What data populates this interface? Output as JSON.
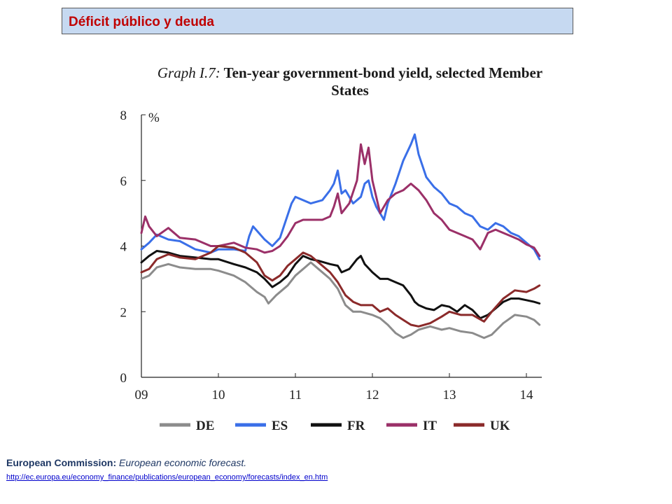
{
  "slide": {
    "header_title": "Déficit público y deuda",
    "source_label": "European Commission:",
    "source_title": "European economic forecast.",
    "source_url": "http://ec.europa.eu/economy_finance/publications/european_economy/forecasts/index_en.htm"
  },
  "chart_data": {
    "type": "line",
    "title_prefix": "Graph I.7:",
    "title": "Ten-year government-bond yield, selected Member States",
    "ylabel": "%",
    "ylim": [
      0,
      8
    ],
    "yticks": [
      0,
      2,
      4,
      6,
      8
    ],
    "xlim": [
      2009.0,
      2014.2
    ],
    "xticks": [
      2009,
      2010,
      2011,
      2012,
      2013,
      2014
    ],
    "xtick_labels": [
      "09",
      "10",
      "11",
      "12",
      "13",
      "14"
    ],
    "legend_position": "bottom",
    "series": [
      {
        "name": "DE",
        "color": "#8c8c8c",
        "x": [
          2009.0,
          2009.1,
          2009.2,
          2009.35,
          2009.5,
          2009.7,
          2009.9,
          2010.0,
          2010.2,
          2010.35,
          2010.5,
          2010.6,
          2010.65,
          2010.75,
          2010.9,
          2011.0,
          2011.1,
          2011.2,
          2011.3,
          2011.45,
          2011.55,
          2011.65,
          2011.75,
          2011.85,
          2012.0,
          2012.1,
          2012.2,
          2012.3,
          2012.4,
          2012.5,
          2012.6,
          2012.75,
          2012.9,
          2013.0,
          2013.15,
          2013.3,
          2013.45,
          2013.55,
          2013.7,
          2013.85,
          2014.0,
          2014.1,
          2014.17
        ],
        "y": [
          3.0,
          3.1,
          3.35,
          3.45,
          3.35,
          3.3,
          3.3,
          3.25,
          3.1,
          2.9,
          2.6,
          2.45,
          2.25,
          2.5,
          2.8,
          3.1,
          3.3,
          3.5,
          3.3,
          3.0,
          2.7,
          2.2,
          2.0,
          2.0,
          1.9,
          1.8,
          1.6,
          1.35,
          1.2,
          1.3,
          1.45,
          1.55,
          1.45,
          1.5,
          1.4,
          1.35,
          1.2,
          1.3,
          1.65,
          1.9,
          1.85,
          1.75,
          1.6
        ]
      },
      {
        "name": "ES",
        "color": "#3a6fe8",
        "x": [
          2009.0,
          2009.1,
          2009.2,
          2009.35,
          2009.5,
          2009.7,
          2009.9,
          2010.0,
          2010.2,
          2010.35,
          2010.4,
          2010.45,
          2010.6,
          2010.7,
          2010.8,
          2010.85,
          2010.95,
          2011.0,
          2011.2,
          2011.35,
          2011.45,
          2011.5,
          2011.55,
          2011.6,
          2011.65,
          2011.75,
          2011.85,
          2011.9,
          2011.95,
          2012.0,
          2012.05,
          2012.1,
          2012.15,
          2012.2,
          2012.3,
          2012.4,
          2012.5,
          2012.55,
          2012.6,
          2012.7,
          2012.8,
          2012.9,
          2013.0,
          2013.1,
          2013.2,
          2013.3,
          2013.4,
          2013.5,
          2013.6,
          2013.7,
          2013.8,
          2013.9,
          2014.0,
          2014.1,
          2014.17
        ],
        "y": [
          3.9,
          4.1,
          4.35,
          4.2,
          4.15,
          3.9,
          3.8,
          3.9,
          3.9,
          3.85,
          4.3,
          4.6,
          4.2,
          4.0,
          4.25,
          4.6,
          5.3,
          5.5,
          5.3,
          5.4,
          5.7,
          5.9,
          6.3,
          5.6,
          5.7,
          5.3,
          5.5,
          5.9,
          6.0,
          5.5,
          5.2,
          5.0,
          4.8,
          5.3,
          5.9,
          6.6,
          7.1,
          7.4,
          6.8,
          6.1,
          5.8,
          5.6,
          5.3,
          5.2,
          5.0,
          4.9,
          4.6,
          4.5,
          4.7,
          4.6,
          4.4,
          4.3,
          4.1,
          3.9,
          3.6
        ]
      },
      {
        "name": "FR",
        "color": "#111111",
        "x": [
          2009.0,
          2009.1,
          2009.2,
          2009.35,
          2009.5,
          2009.7,
          2009.9,
          2010.0,
          2010.2,
          2010.35,
          2010.5,
          2010.6,
          2010.7,
          2010.8,
          2010.9,
          2011.0,
          2011.1,
          2011.2,
          2011.3,
          2011.45,
          2011.55,
          2011.6,
          2011.7,
          2011.8,
          2011.85,
          2011.9,
          2012.0,
          2012.1,
          2012.2,
          2012.3,
          2012.4,
          2012.5,
          2012.55,
          2012.6,
          2012.7,
          2012.8,
          2012.9,
          2013.0,
          2013.1,
          2013.2,
          2013.3,
          2013.4,
          2013.5,
          2013.6,
          2013.7,
          2013.8,
          2013.9,
          2014.0,
          2014.1,
          2014.17
        ],
        "y": [
          3.5,
          3.7,
          3.85,
          3.8,
          3.7,
          3.65,
          3.6,
          3.6,
          3.45,
          3.35,
          3.2,
          3.0,
          2.75,
          2.9,
          3.1,
          3.45,
          3.7,
          3.6,
          3.55,
          3.45,
          3.4,
          3.2,
          3.3,
          3.6,
          3.7,
          3.45,
          3.2,
          3.0,
          3.0,
          2.9,
          2.8,
          2.5,
          2.3,
          2.2,
          2.1,
          2.05,
          2.2,
          2.15,
          2.0,
          2.2,
          2.05,
          1.8,
          1.9,
          2.1,
          2.3,
          2.4,
          2.4,
          2.35,
          2.3,
          2.25
        ]
      },
      {
        "name": "IT",
        "color": "#9b3068",
        "x": [
          2009.0,
          2009.05,
          2009.1,
          2009.2,
          2009.35,
          2009.5,
          2009.7,
          2009.9,
          2010.0,
          2010.2,
          2010.35,
          2010.5,
          2010.6,
          2010.7,
          2010.8,
          2010.9,
          2011.0,
          2011.1,
          2011.2,
          2011.35,
          2011.45,
          2011.5,
          2011.55,
          2011.6,
          2011.7,
          2011.8,
          2011.85,
          2011.9,
          2011.95,
          2012.0,
          2012.05,
          2012.1,
          2012.2,
          2012.3,
          2012.4,
          2012.5,
          2012.6,
          2012.7,
          2012.8,
          2012.9,
          2013.0,
          2013.1,
          2013.2,
          2013.3,
          2013.4,
          2013.5,
          2013.6,
          2013.7,
          2013.8,
          2013.9,
          2014.0,
          2014.1,
          2014.17
        ],
        "y": [
          4.4,
          4.9,
          4.6,
          4.3,
          4.55,
          4.25,
          4.2,
          4.0,
          4.0,
          4.1,
          3.95,
          3.9,
          3.8,
          3.85,
          4.0,
          4.3,
          4.7,
          4.8,
          4.8,
          4.8,
          4.9,
          5.2,
          5.6,
          5.0,
          5.3,
          6.0,
          7.1,
          6.5,
          7.0,
          6.0,
          5.5,
          5.0,
          5.4,
          5.6,
          5.7,
          5.9,
          5.7,
          5.4,
          5.0,
          4.8,
          4.5,
          4.4,
          4.3,
          4.2,
          3.9,
          4.4,
          4.5,
          4.4,
          4.3,
          4.2,
          4.05,
          3.95,
          3.7
        ]
      },
      {
        "name": "UK",
        "color": "#8b2a2a",
        "x": [
          2009.0,
          2009.1,
          2009.2,
          2009.35,
          2009.5,
          2009.7,
          2009.9,
          2010.0,
          2010.2,
          2010.35,
          2010.5,
          2010.6,
          2010.7,
          2010.8,
          2010.9,
          2011.0,
          2011.1,
          2011.2,
          2011.3,
          2011.45,
          2011.55,
          2011.65,
          2011.75,
          2011.85,
          2012.0,
          2012.1,
          2012.2,
          2012.3,
          2012.4,
          2012.5,
          2012.6,
          2012.75,
          2012.9,
          2013.0,
          2013.15,
          2013.3,
          2013.45,
          2013.55,
          2013.7,
          2013.85,
          2014.0,
          2014.1,
          2014.17
        ],
        "y": [
          3.2,
          3.3,
          3.6,
          3.75,
          3.65,
          3.6,
          3.8,
          4.0,
          3.95,
          3.8,
          3.5,
          3.1,
          2.95,
          3.1,
          3.4,
          3.6,
          3.8,
          3.7,
          3.5,
          3.2,
          2.9,
          2.5,
          2.3,
          2.2,
          2.2,
          2.0,
          2.1,
          1.9,
          1.75,
          1.6,
          1.55,
          1.65,
          1.85,
          2.0,
          1.9,
          1.9,
          1.7,
          2.0,
          2.4,
          2.65,
          2.6,
          2.7,
          2.8
        ]
      }
    ]
  }
}
